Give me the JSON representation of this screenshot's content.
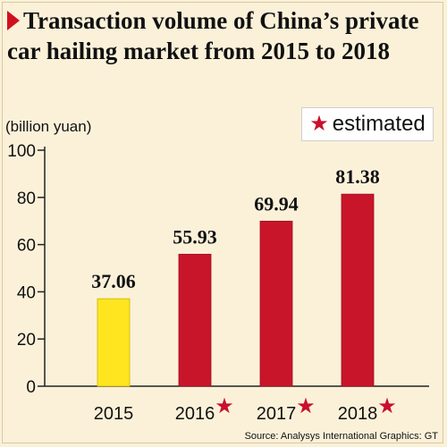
{
  "title": "Transaction volume of China’s private car hailing market from 2015 to 2018",
  "unit_label": "(billion yuan)",
  "legend": {
    "symbol": "★",
    "label": "estimated"
  },
  "source": "Source: Analysys International  Graphics: GT",
  "chart_data": {
    "type": "bar",
    "categories": [
      "2015",
      "2016",
      "2017",
      "2018"
    ],
    "values": [
      37.06,
      55.93,
      69.94,
      81.38
    ],
    "value_labels": [
      "37.06",
      "55.93",
      "69.94",
      "81.38"
    ],
    "estimated": [
      false,
      true,
      true,
      true
    ],
    "ylabel": "(billion yuan)",
    "ylim": [
      0,
      100
    ],
    "yticks": [
      0,
      20,
      40,
      60,
      80,
      100
    ],
    "colors": {
      "actual": "#ffe51f",
      "estimated": "#c8152a",
      "star": "#c8102e",
      "axis": "#222222"
    }
  }
}
